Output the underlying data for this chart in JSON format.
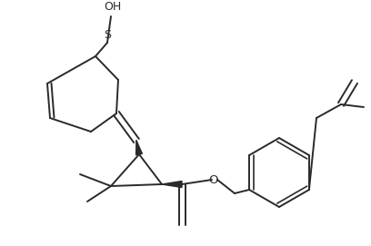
{
  "background_color": "#ffffff",
  "line_color": "#2a2a2a",
  "line_width": 1.4,
  "text_color": "#2a2a2a",
  "font_size": 8.5,
  "figsize": [
    4.08,
    2.71
  ],
  "dpi": 100,
  "xlim": [
    0,
    408
  ],
  "ylim": [
    0,
    271
  ]
}
